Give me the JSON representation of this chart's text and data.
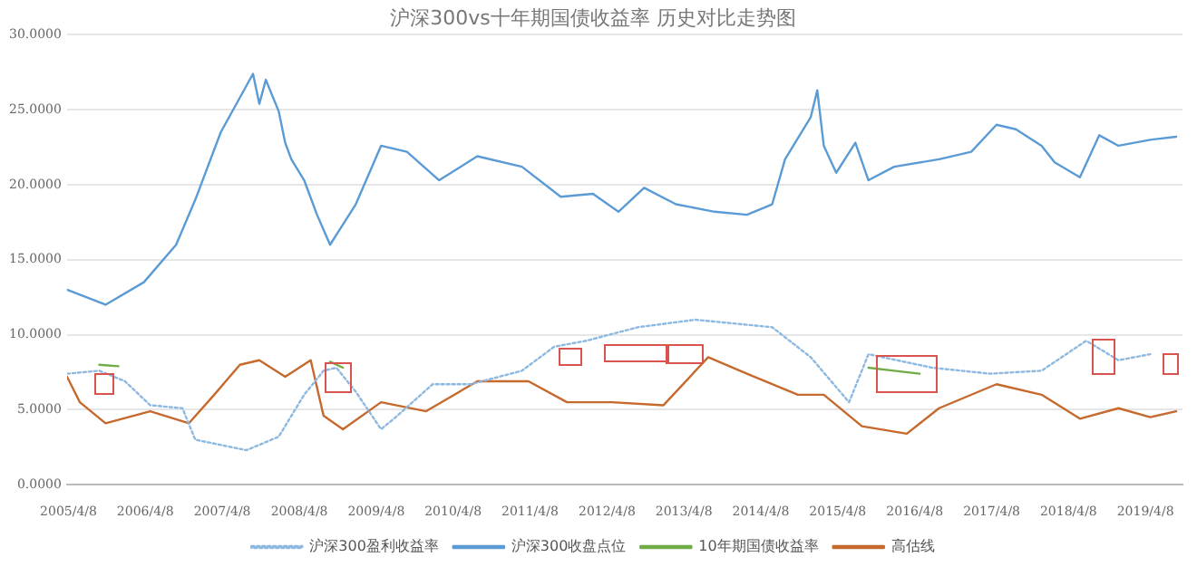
{
  "chart_data": {
    "type": "line",
    "title": "沪深300vs十年期国债收益率 历史对比走势图",
    "xlim": [
      "2005-04-01",
      "2019-10-01"
    ],
    "xticks": [
      {
        "value": "2005-04-08",
        "label": "2005/4/8"
      },
      {
        "value": "2006-04-08",
        "label": "2006/4/8"
      },
      {
        "value": "2007-04-08",
        "label": "2007/4/8"
      },
      {
        "value": "2008-04-08",
        "label": "2008/4/8"
      },
      {
        "value": "2009-04-08",
        "label": "2009/4/8"
      },
      {
        "value": "2010-04-08",
        "label": "2010/4/8"
      },
      {
        "value": "2011-04-08",
        "label": "2011/4/8"
      },
      {
        "value": "2012-04-08",
        "label": "2012/4/8"
      },
      {
        "value": "2013-04-08",
        "label": "2013/4/8"
      },
      {
        "value": "2014-04-08",
        "label": "2014/4/8"
      },
      {
        "value": "2015-04-08",
        "label": "2015/4/8"
      },
      {
        "value": "2016-04-08",
        "label": "2016/4/8"
      },
      {
        "value": "2017-04-08",
        "label": "2017/4/8"
      },
      {
        "value": "2018-04-08",
        "label": "2018/4/8"
      },
      {
        "value": "2019-04-08",
        "label": "2019/4/8"
      }
    ],
    "ylim": [
      0,
      30
    ],
    "yticks": [
      {
        "value": 0,
        "label": "0.0000"
      },
      {
        "value": 5,
        "label": "5.0000"
      },
      {
        "value": 10,
        "label": "10.0000"
      },
      {
        "value": 15,
        "label": "15.0000"
      },
      {
        "value": 20,
        "label": "20.0000"
      },
      {
        "value": 25,
        "label": "25.0000"
      },
      {
        "value": 30,
        "label": "30.0000"
      }
    ],
    "grid": "y",
    "legend": "bottom",
    "marker": "none",
    "series": [
      {
        "name": "沪深300盈利收益率",
        "color": "#8db8e0",
        "line_style": "dotted",
        "x": [
          "2005-04",
          "2005-09",
          "2006-01",
          "2006-05",
          "2006-10",
          "2006-12",
          "2007-08",
          "2008-01",
          "2008-05",
          "2008-08",
          "2008-10",
          "2009-01",
          "2009-05",
          "2009-07",
          "2010-01",
          "2010-07",
          "2011-03",
          "2011-08",
          "2012-01",
          "2012-09",
          "2013-06",
          "2014-06",
          "2014-12",
          "2015-06",
          "2015-09",
          "2016-07",
          "2017-04",
          "2017-12",
          "2018-07",
          "2018-12",
          "2019-05"
        ],
        "values": [
          7.4,
          7.6,
          6.9,
          5.3,
          5.1,
          3.0,
          2.3,
          3.2,
          6.0,
          7.6,
          7.8,
          6.2,
          3.7,
          4.4,
          6.7,
          6.7,
          7.6,
          9.2,
          9.6,
          10.5,
          11.0,
          10.5,
          8.5,
          5.5,
          8.7,
          7.8,
          7.4,
          7.6,
          9.6,
          8.3,
          8.7
        ]
      },
      {
        "name": "沪深300收盘点位",
        "color": "#5b9bd5",
        "line_style": "solid",
        "x": [
          "2005-04",
          "2005-10",
          "2006-04",
          "2006-09",
          "2006-12",
          "2007-04",
          "2007-09",
          "2007-10",
          "2007-11",
          "2008-01",
          "2008-02",
          "2008-03",
          "2008-05",
          "2008-07",
          "2008-09",
          "2009-01",
          "2009-05",
          "2009-09",
          "2010-02",
          "2010-08",
          "2011-03",
          "2011-09",
          "2012-02",
          "2012-06",
          "2012-10",
          "2013-03",
          "2013-09",
          "2014-02",
          "2014-06",
          "2014-08",
          "2014-12",
          "2015-01",
          "2015-02",
          "2015-04",
          "2015-07",
          "2015-09",
          "2016-01",
          "2016-08",
          "2017-01",
          "2017-05",
          "2017-08",
          "2017-12",
          "2018-02",
          "2018-06",
          "2018-09",
          "2018-12",
          "2019-05",
          "2019-09"
        ],
        "values": [
          13.0,
          12.0,
          13.5,
          16.0,
          19.0,
          23.5,
          27.4,
          25.4,
          27.0,
          24.9,
          22.8,
          21.7,
          20.3,
          18.0,
          16.0,
          18.7,
          22.6,
          22.2,
          20.3,
          21.9,
          21.2,
          19.2,
          19.4,
          18.2,
          19.8,
          18.7,
          18.2,
          18.0,
          18.7,
          21.7,
          24.5,
          26.3,
          22.6,
          20.8,
          22.8,
          20.3,
          21.2,
          21.7,
          22.2,
          24.0,
          23.7,
          22.6,
          21.5,
          20.5,
          23.3,
          22.6,
          23.0,
          23.2
        ]
      },
      {
        "name": "10年期国债收益率",
        "color": "#70ad47",
        "line_style": "solid",
        "x": [
          "2005-09",
          "2005-12",
          "2006-02",
          "2008-09",
          "2008-11",
          "2009-01",
          "2015-09",
          "2016-01",
          "2016-05"
        ],
        "values": [
          8.0,
          7.9,
          null,
          8.2,
          7.8,
          null,
          7.8,
          7.6,
          7.4
        ]
      },
      {
        "name": "高估线",
        "color": "#c5692d",
        "line_style": "solid",
        "x": [
          "2005-04",
          "2005-06",
          "2005-10",
          "2006-05",
          "2006-11",
          "2007-03",
          "2007-07",
          "2007-10",
          "2008-02",
          "2008-06",
          "2008-08",
          "2008-11",
          "2009-05",
          "2009-12",
          "2010-08",
          "2011-04",
          "2011-10",
          "2012-05",
          "2013-01",
          "2013-08",
          "2014-02",
          "2014-10",
          "2015-02",
          "2015-08",
          "2016-03",
          "2016-08",
          "2017-05",
          "2017-12",
          "2018-06",
          "2018-12",
          "2019-05",
          "2019-09"
        ],
        "values": [
          7.2,
          5.5,
          4.1,
          4.9,
          4.1,
          6.0,
          8.0,
          8.3,
          7.2,
          8.3,
          4.6,
          3.7,
          5.5,
          4.9,
          6.9,
          6.9,
          5.5,
          5.5,
          5.3,
          8.5,
          7.4,
          6.0,
          6.0,
          3.9,
          3.4,
          5.1,
          6.7,
          6.0,
          4.4,
          5.1,
          4.5,
          4.9
        ]
      }
    ]
  }
}
